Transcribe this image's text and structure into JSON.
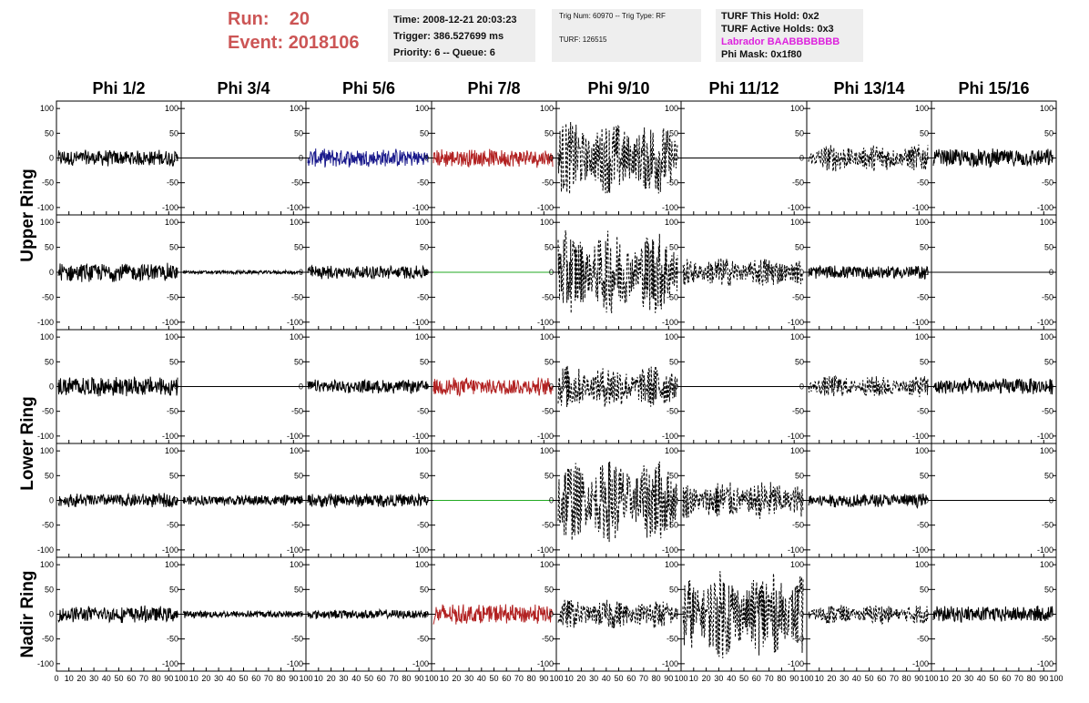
{
  "header": {
    "run_label": "Run:",
    "run_value": "20",
    "event_label": "Event:",
    "event_value": "2018106",
    "time": "Time: 2008-12-21 20:03:23",
    "trigger": "Trigger: 386.527699 ms",
    "priority": "Priority: 6 -- Queue: 6",
    "trig_num": "Trig Num: 60970 -- Trig Type: RF",
    "turf": "TURF: 126515",
    "turf_hold": "TURF This Hold: 0x2",
    "turf_active": "TURF Active Holds: 0x3",
    "labrador": "Labrador BAABBBBBBB",
    "phi_mask": "Phi Mask: 0x1f80"
  },
  "colors": {
    "header_red": "#cc5555",
    "labrador_magenta": "#dd22dd",
    "trace_black": "#000000",
    "trace_blue": "#1a1a8c",
    "trace_red": "#b22222",
    "trace_green": "#22aa22"
  },
  "chart_data": {
    "type": "line",
    "columns": [
      "Phi 1/2",
      "Phi 3/4",
      "Phi 5/6",
      "Phi 7/8",
      "Phi 9/10",
      "Phi 11/12",
      "Phi 13/14",
      "Phi 15/16"
    ],
    "rows": [
      "Upper Ring",
      "Upper Ring",
      "Lower Ring",
      "Lower Ring",
      "Nadir Ring"
    ],
    "row_labels": [
      "Upper Ring",
      "Lower Ring",
      "Nadir Ring"
    ],
    "x_ticks": [
      "0",
      "10",
      "20",
      "30",
      "40",
      "50",
      "60",
      "70",
      "80",
      "90",
      "100"
    ],
    "y_ticks": [
      "100",
      "50",
      "0",
      "-50",
      "-100"
    ],
    "xlim": [
      0,
      100
    ],
    "ylim": [
      -115,
      115
    ],
    "traces": [
      [
        {
          "amp": 18,
          "style": "solid",
          "color": "black"
        },
        {
          "amp": 0,
          "style": "solid",
          "color": "black"
        },
        {
          "amp": 20,
          "style": "solid",
          "color": "blue"
        },
        {
          "amp": 20,
          "style": "solid",
          "color": "red"
        },
        {
          "amp": 75,
          "style": "dashed",
          "color": "black"
        },
        {
          "amp": 0,
          "style": "solid",
          "color": "black"
        },
        {
          "amp": 28,
          "style": "dashed",
          "color": "black"
        },
        {
          "amp": 20,
          "style": "solid",
          "color": "black"
        }
      ],
      [
        {
          "amp": 20,
          "style": "solid",
          "color": "black"
        },
        {
          "amp": 4,
          "style": "solid",
          "color": "black"
        },
        {
          "amp": 15,
          "style": "solid",
          "color": "black"
        },
        {
          "amp": 0,
          "style": "solid",
          "color": "green"
        },
        {
          "amp": 85,
          "style": "dashed",
          "color": "black"
        },
        {
          "amp": 30,
          "style": "dashed",
          "color": "black"
        },
        {
          "amp": 15,
          "style": "solid",
          "color": "black"
        },
        {
          "amp": 0,
          "style": "solid",
          "color": "black"
        }
      ],
      [
        {
          "amp": 22,
          "style": "solid",
          "color": "black"
        },
        {
          "amp": 0,
          "style": "solid",
          "color": "black"
        },
        {
          "amp": 15,
          "style": "solid",
          "color": "black"
        },
        {
          "amp": 20,
          "style": "solid",
          "color": "red"
        },
        {
          "amp": 45,
          "style": "dashed",
          "color": "black"
        },
        {
          "amp": 0,
          "style": "solid",
          "color": "black"
        },
        {
          "amp": 22,
          "style": "dashed",
          "color": "black"
        },
        {
          "amp": 18,
          "style": "solid",
          "color": "black"
        }
      ],
      [
        {
          "amp": 15,
          "style": "solid",
          "color": "black"
        },
        {
          "amp": 12,
          "style": "solid",
          "color": "black"
        },
        {
          "amp": 15,
          "style": "solid",
          "color": "black"
        },
        {
          "amp": 0,
          "style": "solid",
          "color": "green"
        },
        {
          "amp": 85,
          "style": "dashed",
          "color": "black"
        },
        {
          "amp": 40,
          "style": "dashed",
          "color": "black"
        },
        {
          "amp": 15,
          "style": "solid",
          "color": "black"
        },
        {
          "amp": 0,
          "style": "solid",
          "color": "black"
        }
      ],
      [
        {
          "amp": 18,
          "style": "solid",
          "color": "black"
        },
        {
          "amp": 8,
          "style": "solid",
          "color": "black"
        },
        {
          "amp": 10,
          "style": "solid",
          "color": "black"
        },
        {
          "amp": 22,
          "style": "solid",
          "color": "red"
        },
        {
          "amp": 30,
          "style": "dashed",
          "color": "black"
        },
        {
          "amp": 90,
          "style": "dashed",
          "color": "black"
        },
        {
          "amp": 20,
          "style": "dashed",
          "color": "black"
        },
        {
          "amp": 18,
          "style": "solid",
          "color": "black"
        }
      ]
    ]
  }
}
